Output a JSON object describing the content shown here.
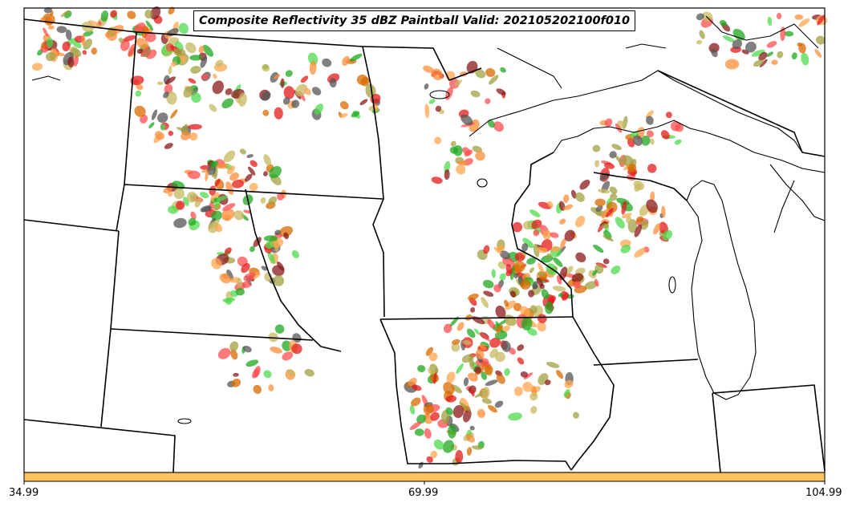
{
  "title": "Composite Reflectivity 35 dBZ Paintball Valid: 202105202100f010",
  "colorbar": {
    "color": "#ffc25f",
    "ticks": [
      "34.99",
      "69.99",
      "104.99"
    ]
  },
  "paint_colors": [
    "#e51b1b",
    "#ff4d4d",
    "#ff8c3a",
    "#ffa64d",
    "#4ddb4d",
    "#1fa81f",
    "#a0a040",
    "#8b1a1a",
    "#555555",
    "#c8b860",
    "#d96a00"
  ],
  "map": {
    "region": "Upper Midwest / Great Lakes",
    "features": [
      "state-borders",
      "lake-michigan",
      "lake-superior",
      "radar-paintball"
    ]
  }
}
